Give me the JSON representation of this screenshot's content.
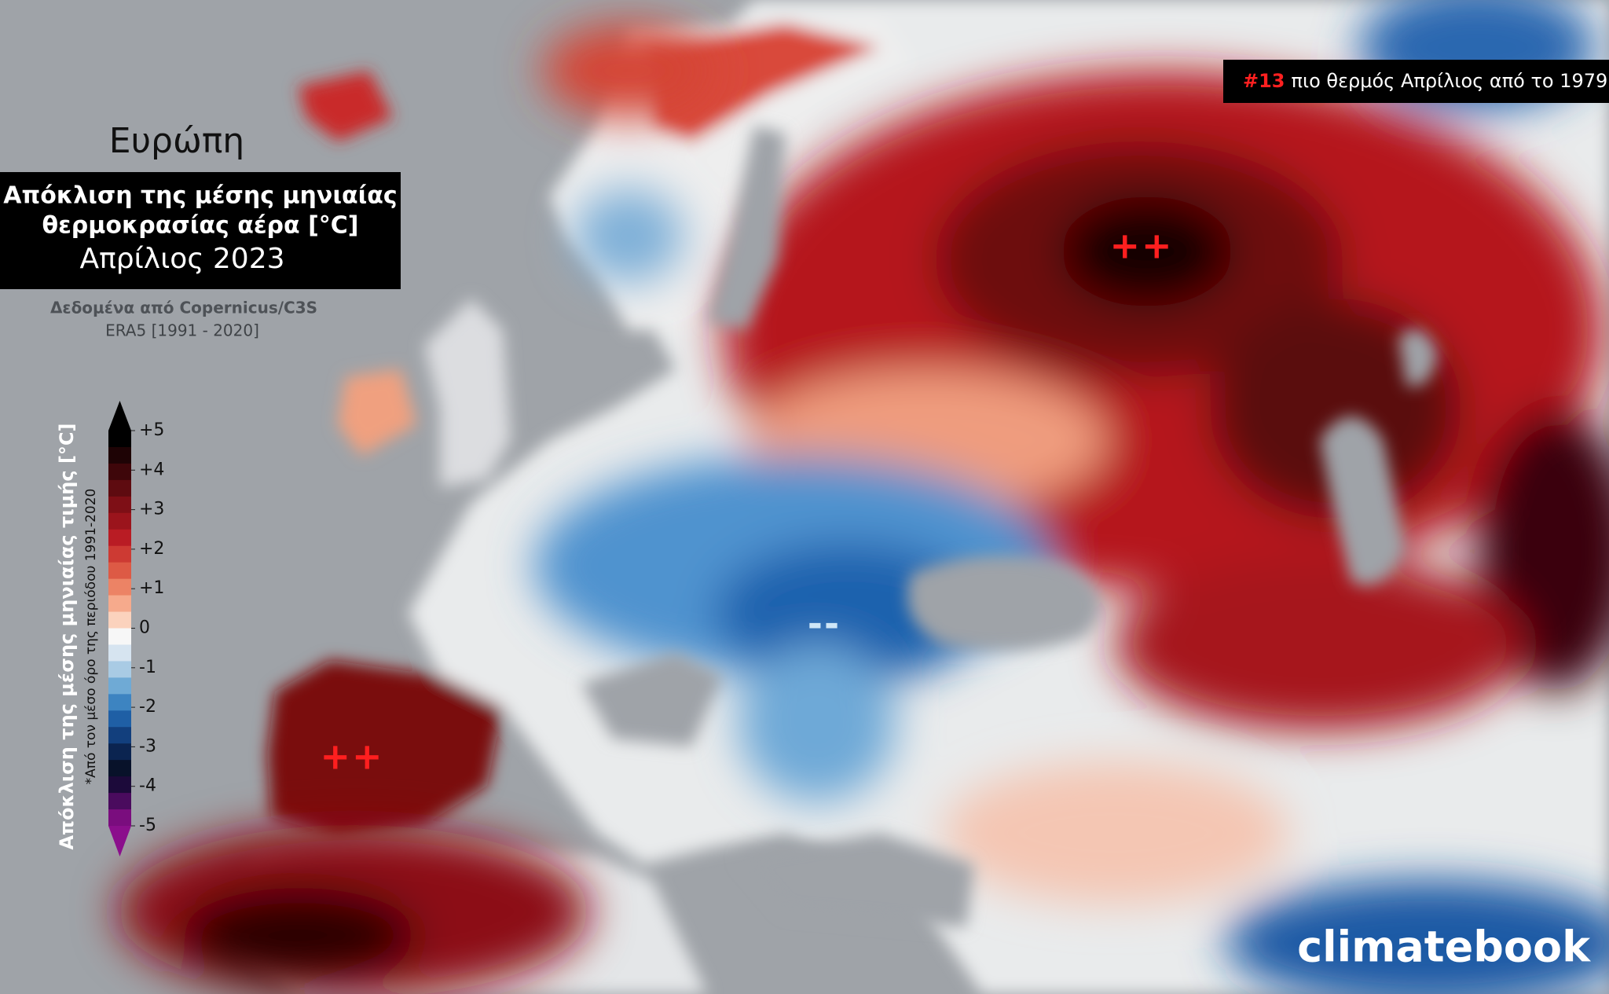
{
  "header": {
    "region": "Ευρώπη",
    "title_lines": [
      "Απόκλιση της μέσης μηνιαίας",
      "θερμοκρασίας αέρα [°C]"
    ],
    "period": "Απρίλιος 2023",
    "source": "Δεδομένα από Copernicus/C3S",
    "baseline": "ERA5 [1991 - 2020]"
  },
  "badge": {
    "rank": "#13",
    "text": "πιο θερμός Απρίλιος από το 1979"
  },
  "colorbar": {
    "title": "Απόκλιση της μέσης μηνιαίας τιμής [°C]",
    "note": "*Από τον μέσο όρο της περιόδου 1991-2020",
    "lim": [
      -5,
      5
    ],
    "ticks": [
      {
        "value": 5,
        "label": "+5"
      },
      {
        "value": 4,
        "label": "+4"
      },
      {
        "value": 3,
        "label": "+3"
      },
      {
        "value": 2,
        "label": "+2"
      },
      {
        "value": 1,
        "label": "+1"
      },
      0,
      -1,
      -2,
      -3,
      -4,
      -5
    ],
    "colors": [
      "#000000",
      "#1e0305",
      "#3e060a",
      "#5e0b10",
      "#7e0f16",
      "#9b141c",
      "#b91c24",
      "#cd3a33",
      "#dd5a45",
      "#ec8365",
      "#f6aa8c",
      "#fbd2bd",
      "#f7f7f7",
      "#d6e4f0",
      "#a9cbe4",
      "#6faad5",
      "#3d84c1",
      "#1f5fa5",
      "#123f7d",
      "#0b2450",
      "#08122a",
      "#1c0a3a",
      "#4a0b5e",
      "#7a0d7e"
    ],
    "color_top": "#000000",
    "color_bottom": "#8b0f8c"
  },
  "markers": [
    {
      "label": "++",
      "color": "#ff1f1f"
    },
    {
      "label": "++",
      "color": "#ff1f1f"
    },
    {
      "label": "--",
      "color": "#cfe6f7"
    }
  ],
  "brand": "climatebook"
}
